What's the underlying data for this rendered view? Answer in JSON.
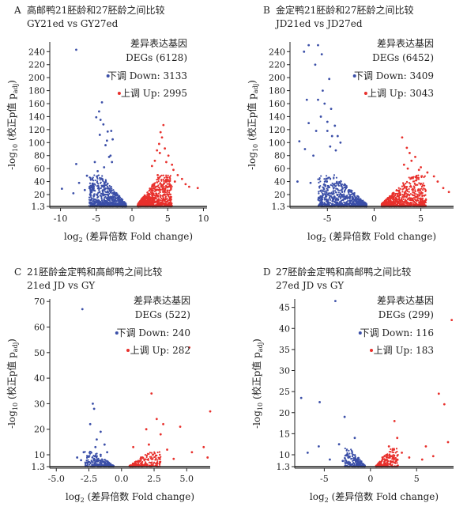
{
  "figure": {
    "xlabel_prefix": "log",
    "xlabel_sub": "2",
    "xlabel_text": " (差异倍数 Fold change)",
    "ylabel_prefix": "-log",
    "ylabel_sub": "10",
    "ylabel_text": " (校正p值 p",
    "ylabel_sub2": "adj",
    "ylabel_end": ")",
    "colors": {
      "down": "#3b4fa8",
      "up": "#e8302c",
      "axis": "#222222"
    }
  },
  "chart_data": [
    {
      "type": "scatter",
      "panel_letter": "A",
      "title": "高邮鸭21胚龄和27胚龄之间比较",
      "subtitle": "GY21ed vs GY27ed",
      "legend_title": "差异表达基因",
      "legend_count": "DEGs (6128)",
      "series": [
        {
          "name": "下调 Down: 3133",
          "color": "#3b4fa8"
        },
        {
          "name": "上调 Up: 2995",
          "color": "#e8302c"
        }
      ],
      "xlim": [
        -11.5,
        10.5
      ],
      "xticks": [
        -10,
        -5,
        0,
        5,
        10
      ],
      "yticks": [
        1.3,
        20,
        40,
        60,
        80,
        100,
        120,
        140,
        160,
        180,
        200,
        220,
        240
      ],
      "ylim": [
        1.3,
        255
      ],
      "threshold_y": 1.3,
      "points_down": [
        [
          -7.8,
          243
        ],
        [
          -4.2,
          162
        ],
        [
          -4.6,
          148
        ],
        [
          -5.0,
          139
        ],
        [
          -4.0,
          128
        ],
        [
          -3.4,
          117
        ],
        [
          -3.5,
          103
        ],
        [
          -2.7,
          105
        ],
        [
          -2.9,
          118
        ],
        [
          -4.4,
          135
        ],
        [
          -7.8,
          67
        ],
        [
          -6.3,
          49
        ],
        [
          -5.6,
          33
        ],
        [
          -9.8,
          29
        ],
        [
          -8.2,
          22
        ],
        [
          -7.4,
          38
        ],
        [
          -6.6,
          27
        ],
        [
          -3.0,
          80
        ],
        [
          -3.2,
          78
        ],
        [
          -2.8,
          70
        ],
        [
          -3.7,
          96
        ],
        [
          -4.5,
          112
        ],
        [
          -5.2,
          70
        ],
        [
          -4.8,
          56
        ],
        [
          -3.9,
          62
        ]
      ],
      "points_up": [
        [
          4.4,
          127
        ],
        [
          4.0,
          116
        ],
        [
          4.2,
          108
        ],
        [
          3.8,
          98
        ],
        [
          3.5,
          88
        ],
        [
          3.9,
          84
        ],
        [
          4.6,
          91
        ],
        [
          5.1,
          80
        ],
        [
          6.4,
          50
        ],
        [
          7.0,
          44
        ],
        [
          8.0,
          32
        ],
        [
          5.6,
          66
        ],
        [
          5.8,
          58
        ],
        [
          6.0,
          40
        ],
        [
          7.5,
          36
        ],
        [
          3.2,
          72
        ],
        [
          2.8,
          64
        ],
        [
          4.8,
          70
        ],
        [
          9.2,
          30
        ],
        [
          3.6,
          50
        ]
      ]
    },
    {
      "type": "scatter",
      "panel_letter": "B",
      "title": "金定鸭21胚龄和27胚龄之间比较",
      "subtitle": "JD21ed vs JD27ed",
      "legend_title": "差异表达基因",
      "legend_count": "DEGs (6452)",
      "series": [
        {
          "name": "下调 Down: 3409",
          "color": "#3b4fa8"
        },
        {
          "name": "上调 Up: 3043",
          "color": "#e8302c"
        }
      ],
      "xlim": [
        -9,
        8.5
      ],
      "xticks": [
        -5,
        0,
        5
      ],
      "yticks": [
        1.3,
        20,
        40,
        60,
        80,
        100,
        120,
        140,
        160,
        180,
        200,
        220,
        240
      ],
      "ylim": [
        1.3,
        255
      ],
      "threshold_y": 1.3,
      "points_down": [
        [
          -7.0,
          250
        ],
        [
          -6.0,
          250
        ],
        [
          -7.5,
          240
        ],
        [
          -5.6,
          236
        ],
        [
          -6.3,
          220
        ],
        [
          -4.8,
          198
        ],
        [
          -5.5,
          180
        ],
        [
          -7.2,
          166
        ],
        [
          -6.0,
          166
        ],
        [
          -5.3,
          160
        ],
        [
          -4.6,
          152
        ],
        [
          -5.7,
          140
        ],
        [
          -5.0,
          132
        ],
        [
          -8.0,
          102
        ],
        [
          -7.0,
          130
        ],
        [
          -4.2,
          126
        ],
        [
          -6.2,
          118
        ],
        [
          -5.0,
          118
        ],
        [
          -4.5,
          110
        ],
        [
          -7.4,
          90
        ],
        [
          -6.5,
          80
        ],
        [
          -3.6,
          100
        ],
        [
          -3.9,
          110
        ],
        [
          -8.2,
          40
        ],
        [
          -6.8,
          38
        ],
        [
          -4.7,
          94
        ],
        [
          -4.1,
          88
        ]
      ],
      "points_up": [
        [
          3.0,
          108
        ],
        [
          3.5,
          92
        ],
        [
          3.8,
          84
        ],
        [
          4.4,
          78
        ],
        [
          4.0,
          72
        ],
        [
          5.0,
          62
        ],
        [
          5.7,
          54
        ],
        [
          6.4,
          48
        ],
        [
          7.4,
          30
        ],
        [
          6.8,
          40
        ],
        [
          3.2,
          66
        ],
        [
          4.8,
          58
        ],
        [
          8.0,
          24
        ],
        [
          3.6,
          60
        ]
      ]
    },
    {
      "type": "scatter",
      "panel_letter": "C",
      "title": "21胚龄金定鸭和高邮鸭之间比较",
      "subtitle": "21ed JD vs GY",
      "legend_title": "差异表达基因",
      "legend_count": "DEGs (522)",
      "series": [
        {
          "name": "下调 Down: 240",
          "color": "#3b4fa8"
        },
        {
          "name": "上调 Up: 282",
          "color": "#e8302c"
        }
      ],
      "xlim": [
        -5.5,
        6.8
      ],
      "xticks": [
        -5.0,
        -2.5,
        0.0,
        2.5,
        5.0
      ],
      "xtick_labels": [
        "-5.0",
        "-2.5",
        "0.0",
        "2.5",
        "5.0"
      ],
      "yticks": [
        1.3,
        10,
        20,
        30,
        40,
        50,
        60,
        70
      ],
      "ylim": [
        1.3,
        71
      ],
      "threshold_y": 1.3,
      "points_down": [
        [
          -3.0,
          67
        ],
        [
          -2.2,
          30
        ],
        [
          -2.1,
          28
        ],
        [
          -2.4,
          22
        ],
        [
          -1.6,
          19
        ],
        [
          -1.9,
          16
        ],
        [
          -2.0,
          13
        ],
        [
          -2.9,
          11
        ],
        [
          -3.4,
          8
        ],
        [
          -1.3,
          14
        ],
        [
          -1.1,
          11
        ],
        [
          -2.6,
          9
        ],
        [
          -1.6,
          10
        ],
        [
          -3.1,
          6
        ],
        [
          -2.1,
          7
        ]
      ],
      "points_up": [
        [
          5.2,
          52
        ],
        [
          2.3,
          34
        ],
        [
          6.8,
          27
        ],
        [
          2.7,
          24
        ],
        [
          3.2,
          22
        ],
        [
          4.5,
          21
        ],
        [
          3.0,
          18
        ],
        [
          1.9,
          20
        ],
        [
          6.3,
          13
        ],
        [
          5.4,
          11
        ],
        [
          2.1,
          14
        ],
        [
          0.9,
          13
        ],
        [
          2.4,
          10
        ],
        [
          6.6,
          8
        ],
        [
          4.0,
          7
        ],
        [
          3.5,
          12
        ],
        [
          1.5,
          8
        ]
      ]
    },
    {
      "type": "scatter",
      "panel_letter": "D",
      "title": "27胚龄金定鸭和高邮鸭之间比较",
      "subtitle": "27ed JD vs GY",
      "legend_title": "差异表达基因",
      "legend_count": "DEGs (299)",
      "series": [
        {
          "name": "下调 Down: 116",
          "color": "#3b4fa8"
        },
        {
          "name": "上调 Up: 183",
          "color": "#e8302c"
        }
      ],
      "xlim": [
        -8.2,
        9.0
      ],
      "xticks": [
        -5,
        0,
        5
      ],
      "yticks": [
        1.3,
        10,
        15,
        20,
        25,
        30,
        35,
        40,
        45
      ],
      "ylim": [
        1.3,
        47
      ],
      "threshold_y": 1.3,
      "points_down": [
        [
          -3.8,
          46.5
        ],
        [
          -5.5,
          22.5
        ],
        [
          -7.5,
          23.5
        ],
        [
          -2.8,
          19
        ],
        [
          -5.6,
          12
        ],
        [
          -6.8,
          10.5
        ],
        [
          -3.4,
          12.5
        ],
        [
          -1.7,
          14
        ],
        [
          -2.4,
          8
        ],
        [
          -4.4,
          6.5
        ],
        [
          -3.0,
          5.5
        ],
        [
          -1.9,
          10
        ]
      ],
      "points_up": [
        [
          8.8,
          42
        ],
        [
          7.4,
          24.5
        ],
        [
          8.0,
          22
        ],
        [
          2.6,
          18
        ],
        [
          2.9,
          14
        ],
        [
          6.0,
          12
        ],
        [
          8.4,
          13
        ],
        [
          3.4,
          10.5
        ],
        [
          2.0,
          12
        ],
        [
          4.2,
          8
        ],
        [
          5.6,
          6.5
        ],
        [
          1.3,
          8
        ],
        [
          6.8,
          9
        ]
      ]
    }
  ]
}
